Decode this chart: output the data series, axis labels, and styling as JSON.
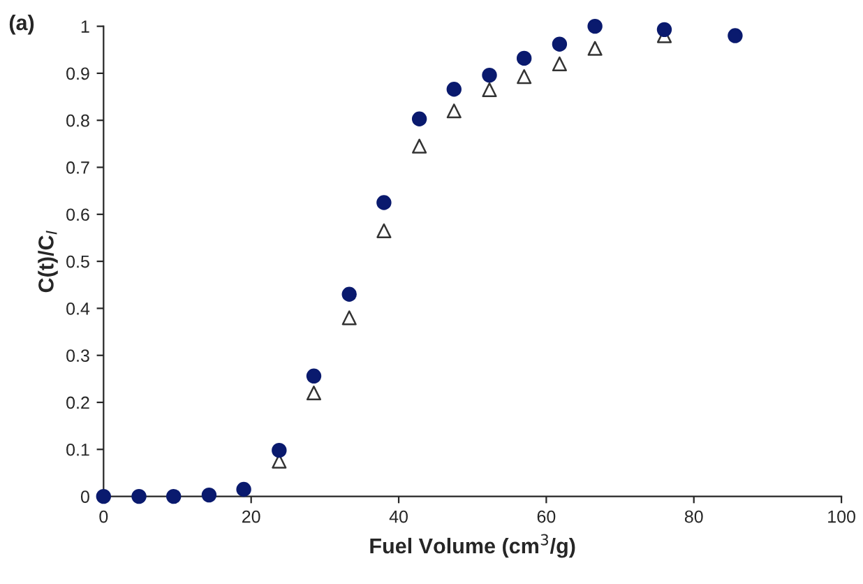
{
  "chart_data": {
    "type": "scatter",
    "xlabel": "Fuel Volume (cm$^{3}$/g)",
    "ylabel": "C(t)/C$_{I}$",
    "annotations": [
      "(a)"
    ],
    "x": [
      0,
      4.8,
      9.5,
      14.3,
      19,
      23.8,
      28.5,
      33.3,
      38,
      42.8,
      47.5,
      52.3,
      57,
      61.8,
      66.6,
      76,
      85.6
    ],
    "series": [
      {
        "color": "#0a1a6e",
        "marker": "circle",
        "values": [
          0,
          0,
          0,
          0.003,
          0.015,
          0.098,
          0.256,
          0.43,
          0.625,
          0.803,
          0.866,
          0.896,
          0.932,
          0.962,
          1.0,
          0.993,
          0.98
        ]
      },
      {
        "color": "#333333",
        "marker": "triangle",
        "values": [
          null,
          null,
          null,
          null,
          null,
          0.075,
          0.22,
          0.38,
          0.565,
          0.745,
          0.82,
          0.865,
          0.893,
          0.92,
          0.953,
          0.98,
          null
        ]
      }
    ],
    "xlim": [
      0,
      100
    ],
    "xticks": [
      0,
      20,
      40,
      60,
      80,
      100
    ],
    "ylim": [
      0,
      1
    ],
    "yticks": [
      0,
      {
        "value": 0.1,
        "label": "0.1"
      },
      {
        "value": 0.2,
        "label": "0.2"
      },
      {
        "value": 0.3,
        "label": "0.3"
      },
      {
        "value": 0.4,
        "label": "0.4"
      },
      {
        "value": 0.5,
        "label": "0.5"
      },
      {
        "value": 0.6,
        "label": "0.6"
      },
      {
        "value": 0.7,
        "label": "0.7"
      },
      {
        "value": 0.8,
        "label": "0.8"
      },
      {
        "value": 0.9,
        "label": "0.9"
      },
      1
    ],
    "grid": false,
    "legend": false
  }
}
